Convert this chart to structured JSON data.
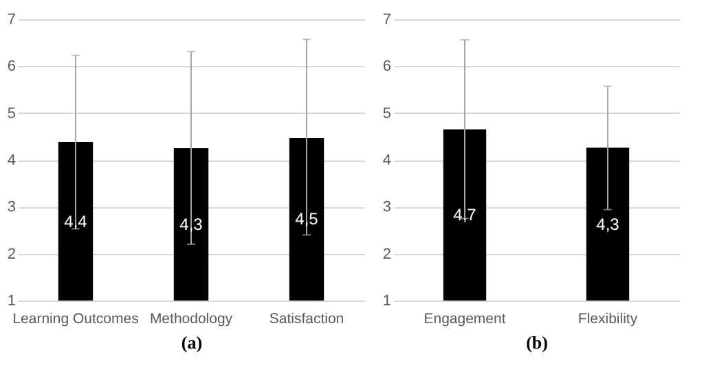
{
  "chart_data": [
    {
      "type": "bar",
      "categories": [
        "Learning Outcomes",
        "Methodology",
        "Satisfaction"
      ],
      "xlabel": "(a)",
      "series": [
        {
          "color": "#000000",
          "values": [
            4.38,
            4.25,
            4.47
          ],
          "errors": [
            [
              2.53,
              6.23
            ],
            [
              2.2,
              6.31
            ],
            [
              2.4,
              6.57
            ]
          ],
          "value_labels": [
            "4,4",
            "4,3",
            "4,5"
          ]
        }
      ],
      "ylim": [
        1,
        7
      ],
      "yticks": [
        1,
        2,
        3,
        4,
        5,
        6,
        7
      ],
      "grid": "y"
    },
    {
      "type": "bar",
      "categories": [
        "Engagement",
        "Flexibility"
      ],
      "xlabel": "(b)",
      "series": [
        {
          "color": "#000000",
          "values": [
            4.65,
            4.26
          ],
          "errors": [
            [
              2.75,
              6.56
            ],
            [
              2.94,
              5.57
            ]
          ],
          "value_labels": [
            "4,7",
            "4,3"
          ]
        }
      ],
      "ylim": [
        1,
        7
      ],
      "yticks": [
        1,
        2,
        3,
        4,
        5,
        6,
        7
      ],
      "grid": "y"
    }
  ]
}
